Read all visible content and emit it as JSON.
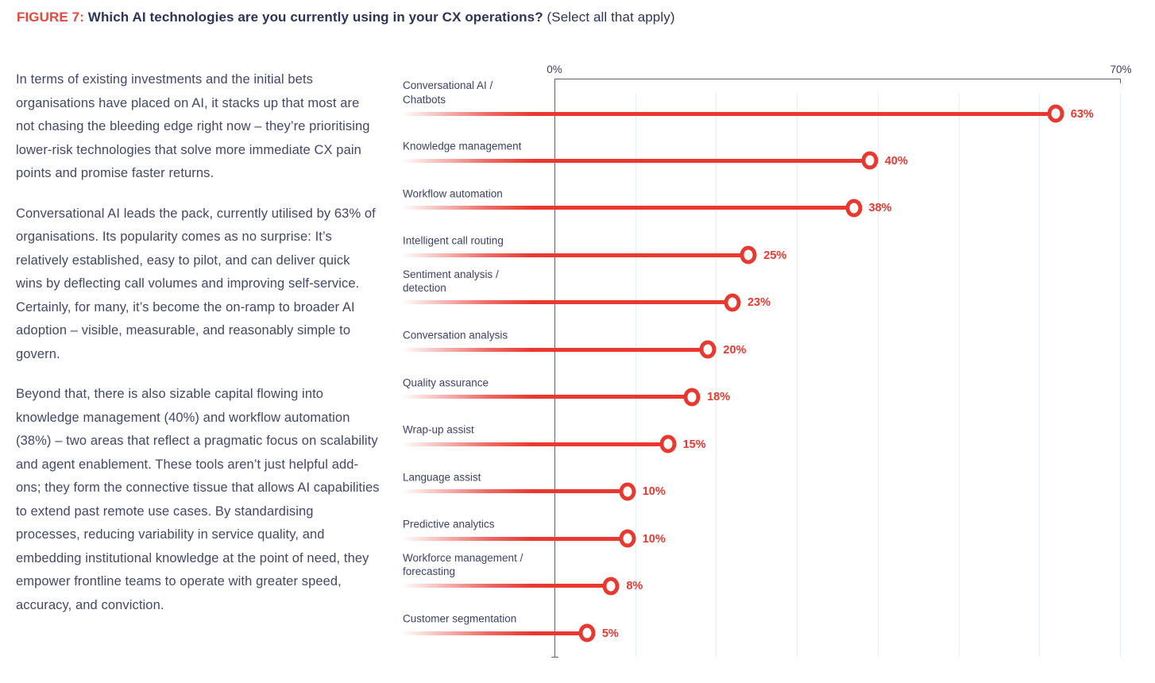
{
  "figure": {
    "label": "FIGURE 7:",
    "title": "Which AI technologies are you currently using in your CX operations?",
    "subtitle": "(Select all that apply)"
  },
  "body_paragraphs": [
    "In terms of existing investments and the initial bets organisations have placed on AI, it stacks up that most are not chasing the bleeding edge right now – they’re prioritising lower-risk technologies that solve more immediate CX pain points and promise faster returns.",
    "Conversational AI leads the pack, currently utilised by 63% of organisations. Its popularity comes as no surprise: It’s relatively established, easy to pilot, and can deliver quick wins by deflecting call volumes and improving self-service. Certainly, for many, it’s become the on-ramp to broader AI adoption – visible, measurable, and reasonably simple to govern.",
    "Beyond that, there is also sizable capital flowing into knowledge management (40%) and workflow automation (38%) – two areas that reflect a pragmatic focus on scalability and agent enablement. These tools aren’t just helpful add-ons; they form the connective tissue that allows AI capabilities to extend past remote use cases. By standardising processes, reducing variability in service quality, and embedding institutional knowledge at the point of need, they empower frontline teams to operate with greater speed, accuracy, and conviction."
  ],
  "chart_data": {
    "type": "bar",
    "variant": "lollipop",
    "orientation": "horizontal",
    "title": "Which AI technologies are you currently using in your CX operations?",
    "xlabel": "",
    "ylabel": "",
    "xlim": [
      0,
      70
    ],
    "x_axis": {
      "min_label": "0%",
      "max_label": "70%",
      "gridline_step": 10,
      "grid": "vertical"
    },
    "legend": "none",
    "categories": [
      "Conversational AI / Chatbots",
      "Knowledge management",
      "Workflow automation",
      "Intelligent call routing",
      "Sentiment analysis / detection",
      "Conversation analysis",
      "Quality assurance",
      "Wrap-up assist",
      "Language assist",
      "Predictive analytics",
      "Workforce management / forecasting",
      "Customer segmentation"
    ],
    "values": [
      63,
      40,
      38,
      25,
      23,
      20,
      18,
      15,
      10,
      10,
      8,
      5
    ],
    "rows": [
      {
        "label": "Conversational AI /\nChatbots",
        "value": 63,
        "display_value": "63%"
      },
      {
        "label": "Knowledge management",
        "value": 40,
        "display_value": "40%"
      },
      {
        "label": "Workflow automation",
        "value": 38,
        "display_value": "38%"
      },
      {
        "label": "Intelligent call routing",
        "value": 25,
        "display_value": "25%"
      },
      {
        "label": "Sentiment analysis /\ndetection",
        "value": 23,
        "display_value": "23%"
      },
      {
        "label": "Conversation analysis",
        "value": 20,
        "display_value": "20%"
      },
      {
        "label": "Quality assurance",
        "value": 18,
        "display_value": "18%"
      },
      {
        "label": "Wrap-up assist",
        "value": 15,
        "display_value": "15%"
      },
      {
        "label": "Language assist",
        "value": 10,
        "display_value": "10%"
      },
      {
        "label": "Predictive analytics",
        "value": 10,
        "display_value": "10%"
      },
      {
        "label": "Workforce management /\nforecasting",
        "value": 8,
        "display_value": "8%"
      },
      {
        "label": "Customer segmentation",
        "value": 5,
        "display_value": "5%"
      }
    ],
    "colors": {
      "line_red": "#e7392f",
      "value_label_red": "#e7392f",
      "figure_label_red": "#e8473b",
      "heading_navy": "#2e3459",
      "body_text": "#424868",
      "category_label": "#3d4366",
      "axis": "#5d6282",
      "gridline": "#e6eff7"
    }
  }
}
